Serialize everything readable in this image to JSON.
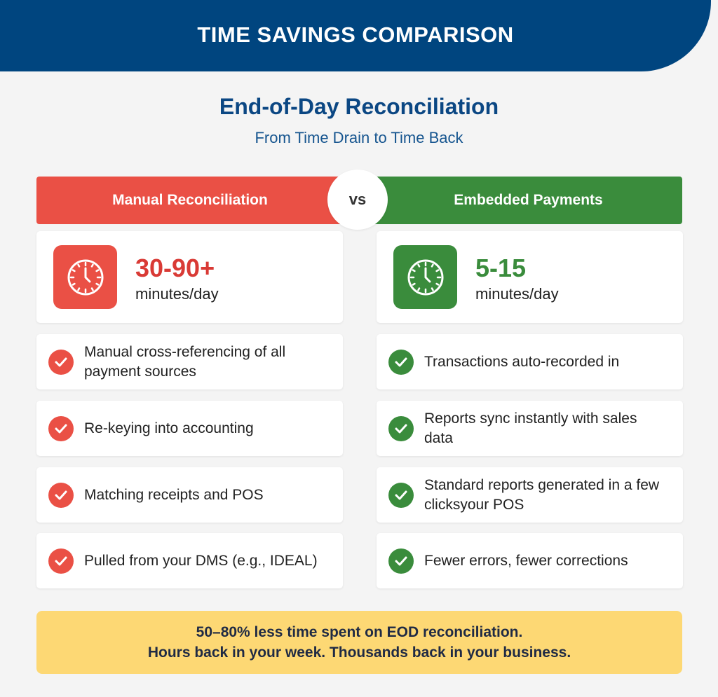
{
  "header": {
    "title": "TIME SAVINGS COMPARISON"
  },
  "main": {
    "title": "End-of-Day Reconciliation",
    "subtitle": "From Time Drain to Time Back"
  },
  "vs_label": "vs",
  "left": {
    "heading": "Manual Reconciliation",
    "time_value": "30-90+",
    "time_unit": "minutes/day",
    "icon": "clock-icon",
    "items": [
      "Manual cross-referencing of all payment sources",
      "Re-keying into accounting",
      "Matching receipts and POS",
      "Pulled from your DMS (e.g., IDEAL)"
    ]
  },
  "right": {
    "heading": "Embedded Payments",
    "time_value": "5-15",
    "time_unit": "minutes/day",
    "icon": "clock-icon",
    "items": [
      "Transactions auto-recorded in",
      "Reports sync instantly with sales data",
      "Standard reports generated in a few clicksyour POS",
      "Fewer errors, fewer corrections"
    ]
  },
  "footer": {
    "line1": "50–80% less time spent on EOD reconciliation.",
    "line2": "Hours back in your week. Thousands back in your business."
  },
  "colors": {
    "header_blue": "#00457f",
    "manual_red": "#ea5045",
    "embedded_green": "#3a8c3c",
    "footer_yellow": "#fdd874"
  }
}
